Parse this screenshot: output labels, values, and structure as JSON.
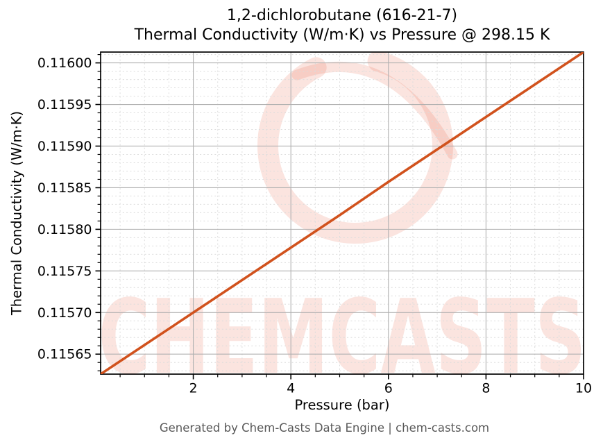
{
  "header": {
    "title_line1": "1,2-dichlorobutane (616-21-7)",
    "title_line2": "Thermal Conductivity (W/m·K) vs Pressure @ 298.15 K"
  },
  "footer": {
    "text": "Generated by Chem-Casts Data Engine | chem-casts.com"
  },
  "watermark": {
    "text": "CHEMCASTS",
    "color": "rgba(231, 86, 53, 0.16)"
  },
  "chart_data": {
    "type": "line",
    "title": "1,2-dichlorobutane (616-21-7) Thermal Conductivity (W/m·K) vs Pressure @ 298.15 K",
    "xlabel": "Pressure (bar)",
    "ylabel": "Thermal Conductivity (W/m·K)",
    "x": [
      0.1,
      1,
      2,
      3,
      4,
      5,
      6,
      7,
      8,
      9,
      10
    ],
    "y": [
      0.115626,
      0.115661,
      0.1157,
      0.115739,
      0.115778,
      0.115817,
      0.115857,
      0.115896,
      0.115935,
      0.115974,
      0.116013
    ],
    "xlim": [
      0.1,
      10
    ],
    "ylim": [
      0.115626,
      0.116013
    ],
    "xticks": [
      2,
      4,
      6,
      8,
      10
    ],
    "xtick_labels": [
      "2",
      "4",
      "6",
      "8",
      "10"
    ],
    "yticks": [
      0.11565,
      0.1157,
      0.11575,
      0.1158,
      0.11585,
      0.1159,
      0.11595,
      0.116
    ],
    "ytick_labels": [
      "0.11565",
      "0.11570",
      "0.11575",
      "0.11580",
      "0.11585",
      "0.11590",
      "0.11595",
      "0.11600"
    ],
    "x_minor_step": 0.5,
    "y_minor_step": 1e-05,
    "grid": true,
    "legend": false,
    "legend_position": "none",
    "line_color": "#d1521d",
    "line_width": 3.6,
    "major_grid_color": "#b0b0b0",
    "minor_grid_color": "#dcdcdc"
  }
}
